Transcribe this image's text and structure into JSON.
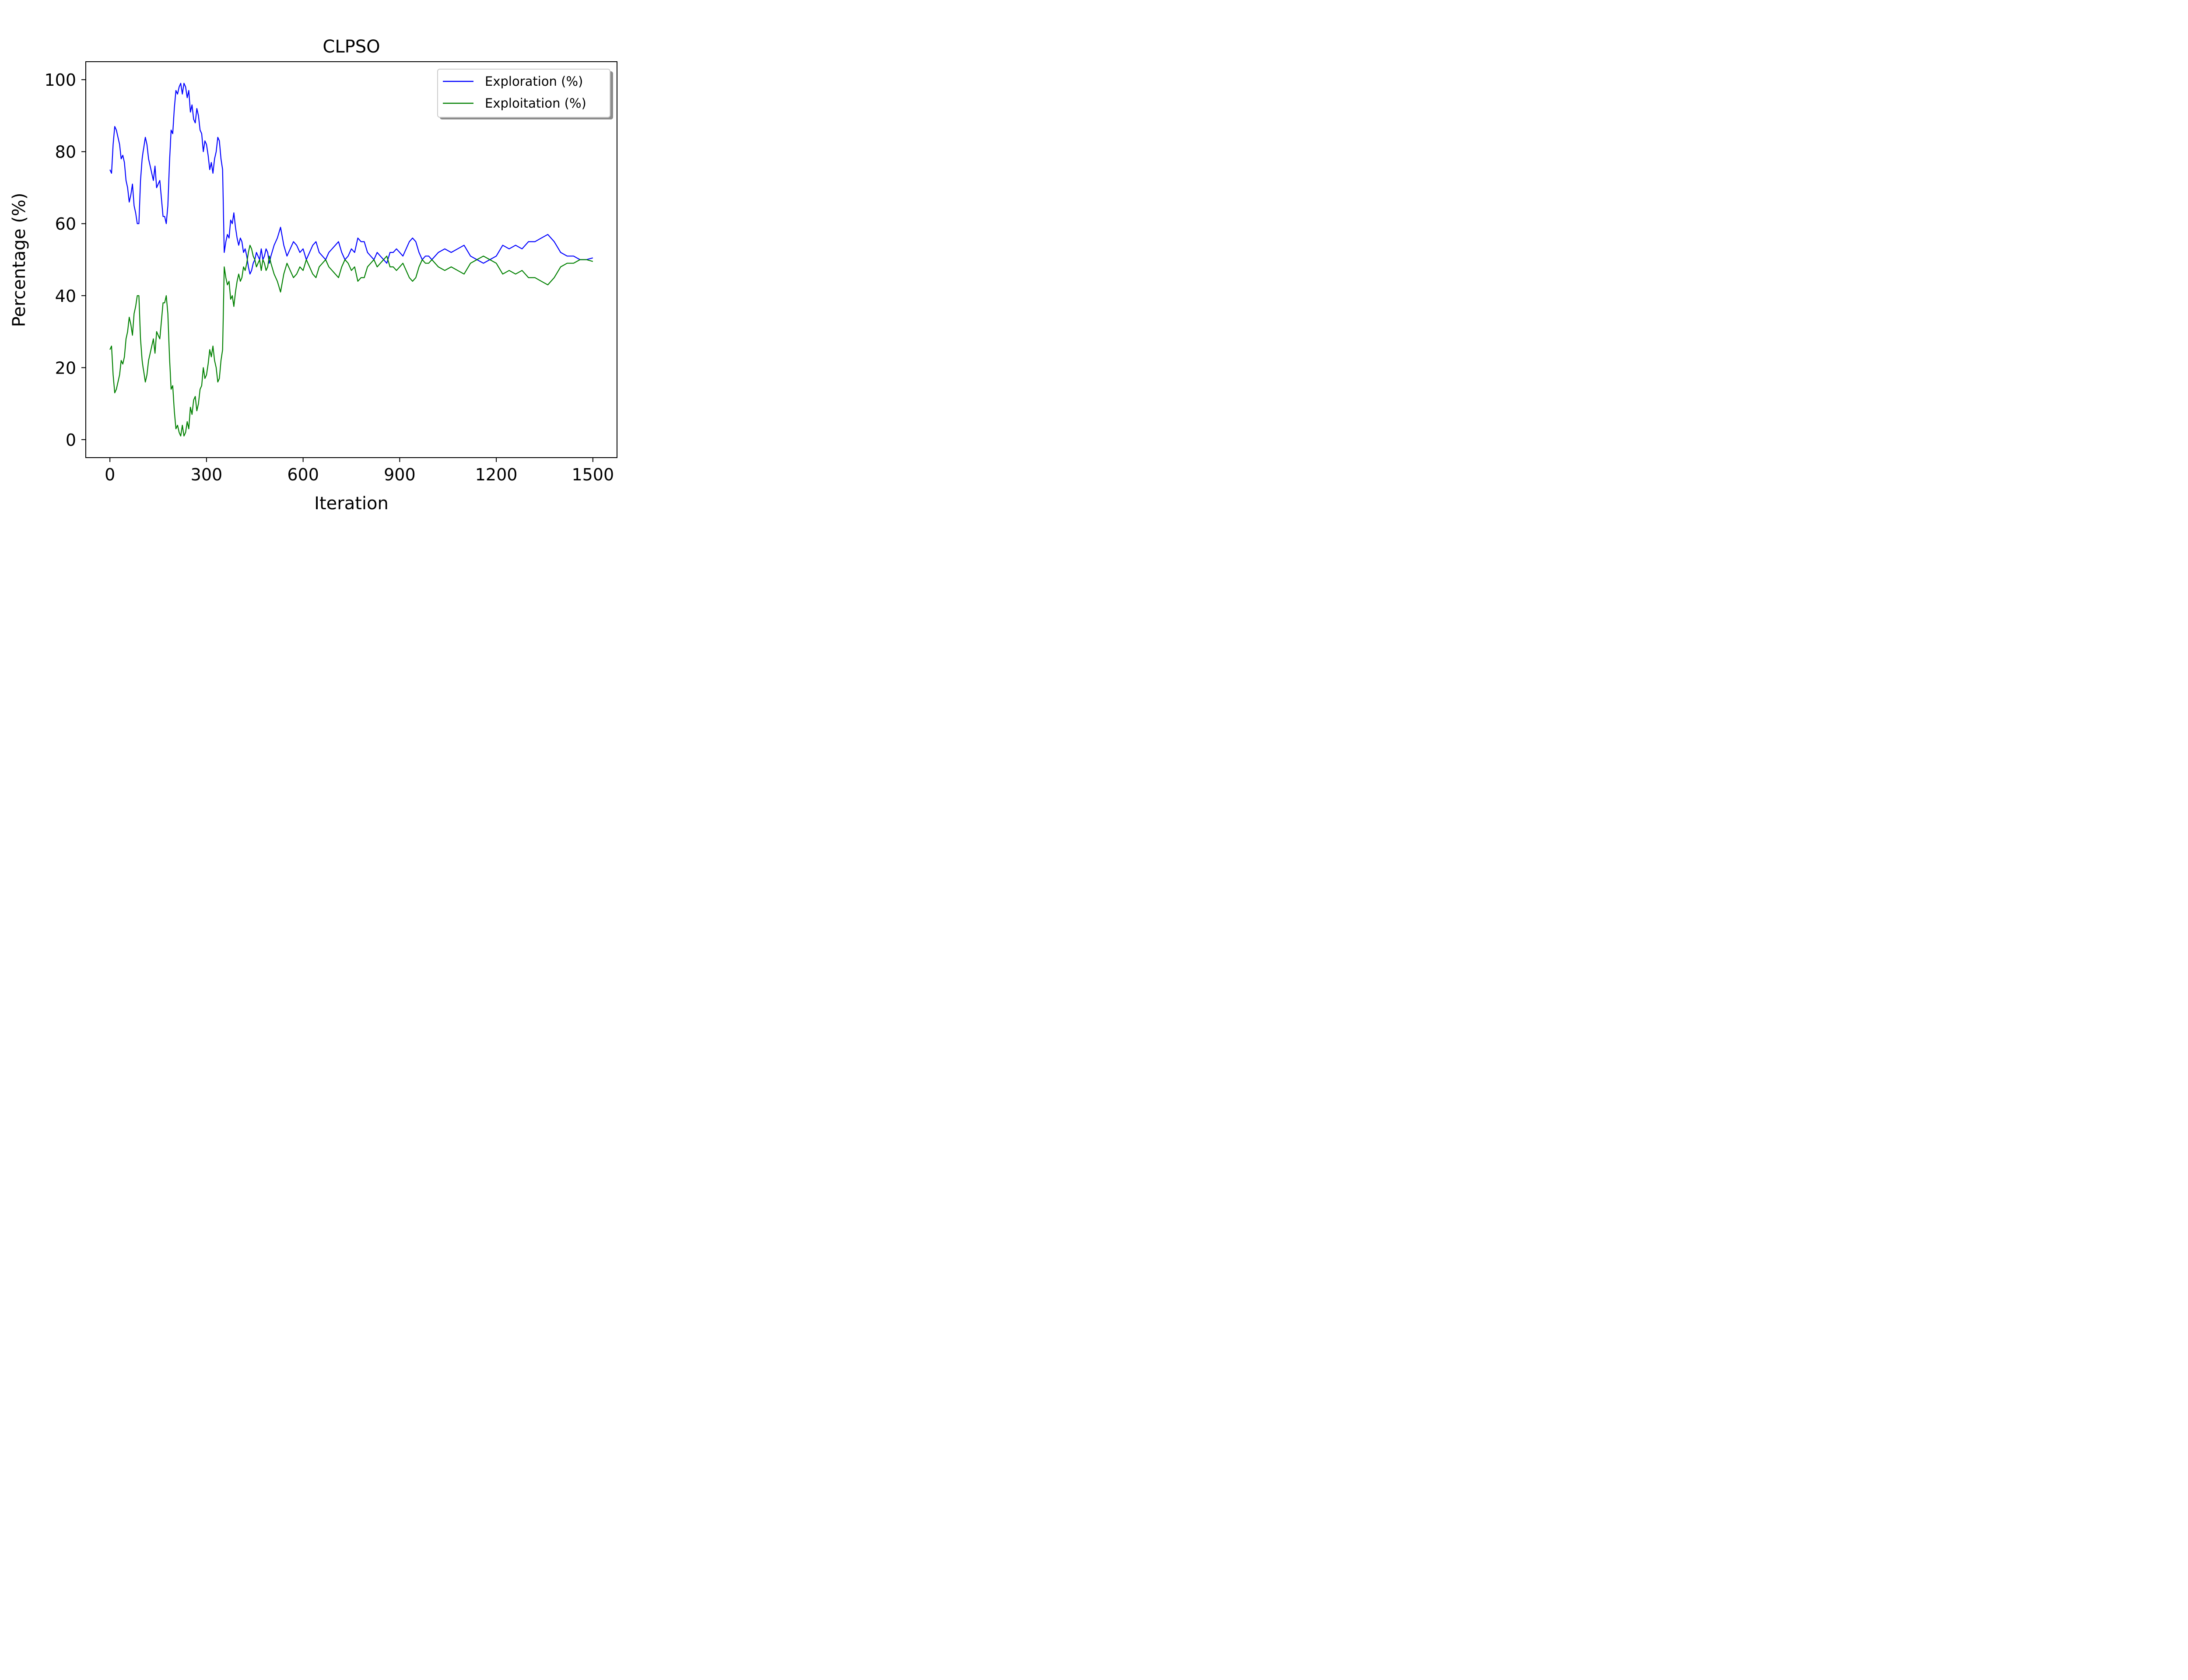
{
  "chart_data": {
    "type": "line",
    "title": "CLPSO",
    "xlabel": "Iteration",
    "ylabel": "Percentage (%)",
    "xlim": [
      -75,
      1575
    ],
    "ylim": [
      -5,
      105
    ],
    "xticks": [
      0,
      300,
      600,
      900,
      1200,
      1500
    ],
    "xtick_labels": [
      "0",
      "300",
      "600",
      "900",
      "1200",
      "1500"
    ],
    "yticks": [
      0,
      20,
      40,
      60,
      80,
      100
    ],
    "ytick_labels": [
      "0",
      "20",
      "40",
      "60",
      "80",
      "100"
    ],
    "grid": false,
    "legend_position": "top-right",
    "series": [
      {
        "name": "Exploration (%)",
        "color": "#0000ff",
        "x": [
          0,
          5,
          10,
          15,
          20,
          25,
          30,
          35,
          40,
          45,
          50,
          55,
          60,
          65,
          70,
          75,
          80,
          85,
          90,
          95,
          100,
          103,
          105,
          110,
          115,
          120,
          125,
          130,
          135,
          140,
          145,
          150,
          155,
          160,
          165,
          170,
          175,
          180,
          185,
          190,
          195,
          200,
          205,
          210,
          215,
          220,
          225,
          230,
          235,
          240,
          245,
          250,
          255,
          260,
          265,
          270,
          275,
          280,
          285,
          290,
          295,
          300,
          305,
          310,
          315,
          320,
          325,
          330,
          335,
          340,
          345,
          350,
          355,
          360,
          365,
          370,
          375,
          380,
          385,
          390,
          395,
          400,
          405,
          410,
          415,
          420,
          425,
          430,
          435,
          440,
          445,
          450,
          455,
          460,
          465,
          470,
          475,
          480,
          485,
          490,
          495,
          500,
          510,
          520,
          530,
          540,
          550,
          560,
          570,
          580,
          590,
          600,
          610,
          620,
          630,
          640,
          650,
          660,
          670,
          680,
          690,
          700,
          710,
          720,
          730,
          740,
          750,
          760,
          770,
          780,
          790,
          800,
          810,
          820,
          830,
          840,
          850,
          860,
          870,
          880,
          890,
          900,
          910,
          920,
          930,
          940,
          950,
          960,
          970,
          980,
          990,
          1000,
          1020,
          1040,
          1060,
          1080,
          1100,
          1120,
          1140,
          1160,
          1180,
          1200,
          1220,
          1240,
          1260,
          1280,
          1300,
          1320,
          1340,
          1360,
          1380,
          1400,
          1420,
          1440,
          1460,
          1480,
          1500
        ],
        "values": [
          75,
          74,
          82,
          87,
          86,
          84,
          82,
          78,
          79,
          77,
          72,
          70,
          66,
          68,
          71,
          65,
          63,
          60,
          60,
          72,
          78,
          80,
          81,
          84,
          82,
          78,
          76,
          74,
          72,
          76,
          70,
          71,
          72,
          67,
          62,
          62,
          60,
          65,
          77,
          86,
          85,
          92,
          97,
          96,
          98,
          99,
          96,
          99,
          98,
          95,
          97,
          91,
          93,
          89,
          88,
          92,
          90,
          86,
          85,
          80,
          83,
          82,
          79,
          75,
          77,
          74,
          78,
          80,
          84,
          83,
          78,
          75,
          52,
          55,
          57,
          56,
          61,
          60,
          63,
          59,
          56,
          54,
          56,
          55,
          52,
          53,
          51,
          48,
          46,
          47,
          49,
          50,
          52,
          51,
          50,
          53,
          50,
          51,
          53,
          52,
          49,
          51,
          54,
          56,
          59,
          54,
          51,
          53,
          55,
          54,
          52,
          53,
          50,
          52,
          54,
          55,
          52,
          51,
          50,
          52,
          53,
          54,
          55,
          52,
          50,
          51,
          53,
          52,
          56,
          55,
          55,
          52,
          51,
          50,
          52,
          51,
          50,
          49,
          52,
          52,
          53,
          52,
          51,
          53,
          55,
          56,
          55,
          52,
          50,
          51,
          51,
          50,
          52,
          53,
          52,
          53,
          54,
          51,
          50,
          49,
          50,
          51,
          54,
          53,
          54,
          53,
          55,
          55,
          56,
          57,
          55,
          52,
          51,
          51,
          50,
          50,
          50.5
        ]
      },
      {
        "name": "Exploitation (%)",
        "color": "#008000",
        "x": [
          0,
          5,
          10,
          15,
          20,
          25,
          30,
          35,
          40,
          45,
          50,
          55,
          60,
          65,
          70,
          75,
          80,
          85,
          90,
          95,
          100,
          103,
          105,
          110,
          115,
          120,
          125,
          130,
          135,
          140,
          145,
          150,
          155,
          160,
          165,
          170,
          175,
          180,
          185,
          190,
          195,
          200,
          205,
          210,
          215,
          220,
          225,
          230,
          235,
          240,
          245,
          250,
          255,
          260,
          265,
          270,
          275,
          280,
          285,
          290,
          295,
          300,
          305,
          310,
          315,
          320,
          325,
          330,
          335,
          340,
          345,
          350,
          355,
          360,
          365,
          370,
          375,
          380,
          385,
          390,
          395,
          400,
          405,
          410,
          415,
          420,
          425,
          430,
          435,
          440,
          445,
          450,
          455,
          460,
          465,
          470,
          475,
          480,
          485,
          490,
          495,
          500,
          510,
          520,
          530,
          540,
          550,
          560,
          570,
          580,
          590,
          600,
          610,
          620,
          630,
          640,
          650,
          660,
          670,
          680,
          690,
          700,
          710,
          720,
          730,
          740,
          750,
          760,
          770,
          780,
          790,
          800,
          810,
          820,
          830,
          840,
          850,
          860,
          870,
          880,
          890,
          900,
          910,
          920,
          930,
          940,
          950,
          960,
          970,
          980,
          990,
          1000,
          1020,
          1040,
          1060,
          1080,
          1100,
          1120,
          1140,
          1160,
          1180,
          1200,
          1220,
          1240,
          1260,
          1280,
          1300,
          1320,
          1340,
          1360,
          1380,
          1400,
          1420,
          1440,
          1460,
          1480,
          1500
        ],
        "values": [
          25,
          26,
          18,
          13,
          14,
          16,
          18,
          22,
          21,
          23,
          28,
          30,
          34,
          32,
          29,
          35,
          37,
          40,
          40,
          28,
          22,
          20,
          19,
          16,
          18,
          22,
          24,
          26,
          28,
          24,
          30,
          29,
          28,
          33,
          38,
          38,
          40,
          35,
          23,
          14,
          15,
          8,
          3,
          4,
          2,
          1,
          4,
          1,
          2,
          5,
          3,
          9,
          7,
          11,
          12,
          8,
          10,
          14,
          15,
          20,
          17,
          18,
          21,
          25,
          23,
          26,
          22,
          20,
          16,
          17,
          22,
          25,
          48,
          45,
          43,
          44,
          39,
          40,
          37,
          41,
          44,
          46,
          44,
          45,
          48,
          47,
          49,
          52,
          54,
          53,
          51,
          50,
          48,
          49,
          50,
          47,
          50,
          49,
          47,
          48,
          51,
          49,
          46,
          44,
          41,
          46,
          49,
          47,
          45,
          46,
          48,
          47,
          50,
          48,
          46,
          45,
          48,
          49,
          50,
          48,
          47,
          46,
          45,
          48,
          50,
          49,
          47,
          48,
          44,
          45,
          45,
          48,
          49,
          50,
          48,
          49,
          50,
          51,
          48,
          48,
          47,
          48,
          49,
          47,
          45,
          44,
          45,
          48,
          50,
          49,
          49,
          50,
          48,
          47,
          48,
          47,
          46,
          49,
          50,
          51,
          50,
          49,
          46,
          47,
          46,
          47,
          45,
          45,
          44,
          43,
          45,
          48,
          49,
          49,
          50,
          50,
          49.5
        ]
      }
    ]
  }
}
